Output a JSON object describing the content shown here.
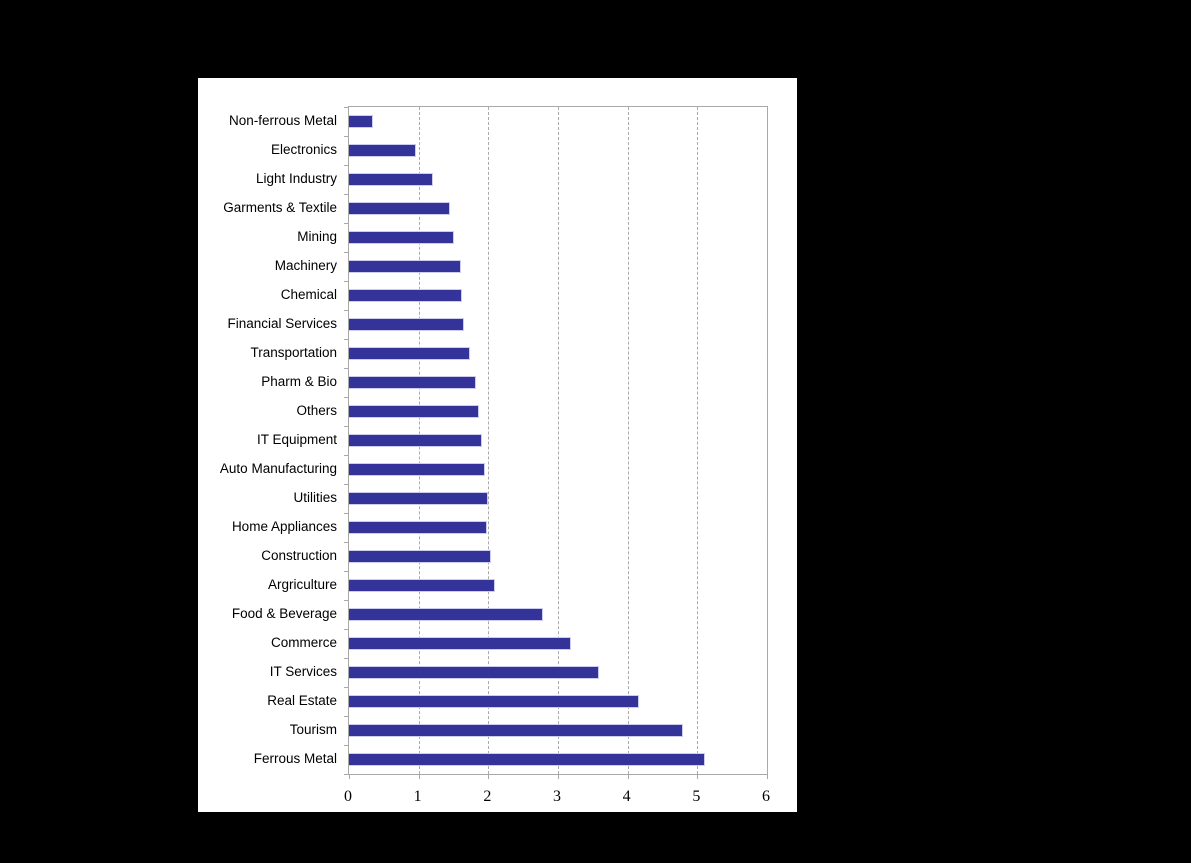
{
  "page": {
    "background_color": "#000000",
    "panel_background_color": "#ffffff"
  },
  "chart_data": {
    "type": "bar",
    "orientation": "horizontal",
    "title": "",
    "xlabel": "",
    "ylabel": "",
    "legend": "none",
    "grid": "vertical-dashed",
    "xlim": [
      0,
      6
    ],
    "x_ticks": [
      0,
      1,
      2,
      3,
      4,
      5,
      6
    ],
    "categories": [
      "Non-ferrous Metal",
      "Electronics",
      "Light Industry",
      "Garments & Textile",
      "Mining",
      "Machinery",
      "Chemical",
      "Financial Services",
      "Transportation",
      "Pharm & Bio",
      "Others",
      "IT Equipment",
      "Auto Manufacturing",
      "Utilities",
      "Home Appliances",
      "Construction",
      "Argriculture",
      "Food & Beverage",
      "Commerce",
      "IT Services",
      "Real Estate",
      "Tourism",
      "Ferrous Metal"
    ],
    "values": [
      0.35,
      0.96,
      1.2,
      1.45,
      1.51,
      1.61,
      1.62,
      1.65,
      1.73,
      1.83,
      1.86,
      1.91,
      1.95,
      1.99,
      1.98,
      2.04,
      2.1,
      2.78,
      3.18,
      3.59,
      4.16,
      4.8,
      5.11
    ],
    "colors": {
      "bar_fill": "#333399",
      "bar_border": "#ccccee",
      "gridline": "#aaaaaa",
      "axis_frame": "#a8a8a8",
      "tick_label": "#000000",
      "category_label": "#000000"
    }
  }
}
